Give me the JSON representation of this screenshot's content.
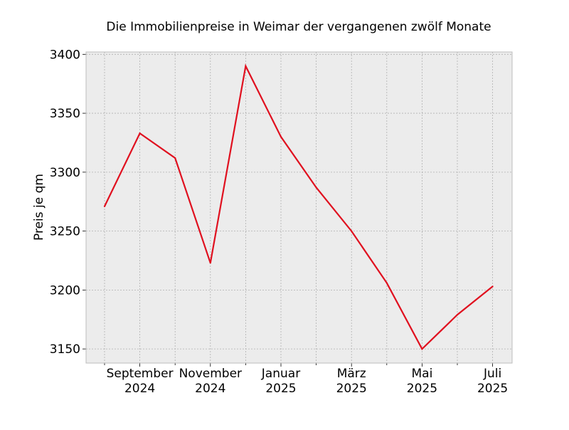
{
  "chart_data": {
    "type": "line",
    "title": "Die Immobilienpreise in Weimar der vergangenen zwölf Monate",
    "xlabel": "",
    "ylabel": "Preis je qm",
    "x": [
      "2024-08",
      "2024-09",
      "2024-10",
      "2024-11",
      "2024-12",
      "2025-01",
      "2025-02",
      "2025-03",
      "2025-04",
      "2025-05",
      "2025-06",
      "2025-07"
    ],
    "series": [
      {
        "values": [
          3271,
          3333,
          3312,
          3223,
          3390,
          3330,
          3287,
          3250,
          3206,
          3150,
          3179,
          3203
        ]
      }
    ],
    "ylim": [
      3138,
      3402
    ],
    "yticks": [
      3150,
      3200,
      3250,
      3300,
      3350,
      3400
    ],
    "xtick_labels": [
      {
        "x": "2024-09",
        "line1": "September",
        "line2": "2024"
      },
      {
        "x": "2024-11",
        "line1": "November",
        "line2": "2024"
      },
      {
        "x": "2025-01",
        "line1": "Januar",
        "line2": "2025"
      },
      {
        "x": "2025-03",
        "line1": "März",
        "line2": "2025"
      },
      {
        "x": "2025-05",
        "line1": "Mai",
        "line2": "2025"
      },
      {
        "x": "2025-07",
        "line1": "Juli",
        "line2": "2025"
      }
    ],
    "grid": true,
    "colors": {
      "line": "#e0101f",
      "plot_background": "#ececec",
      "grid": "#b0b0b0",
      "frame": "#bcbcbc"
    }
  }
}
